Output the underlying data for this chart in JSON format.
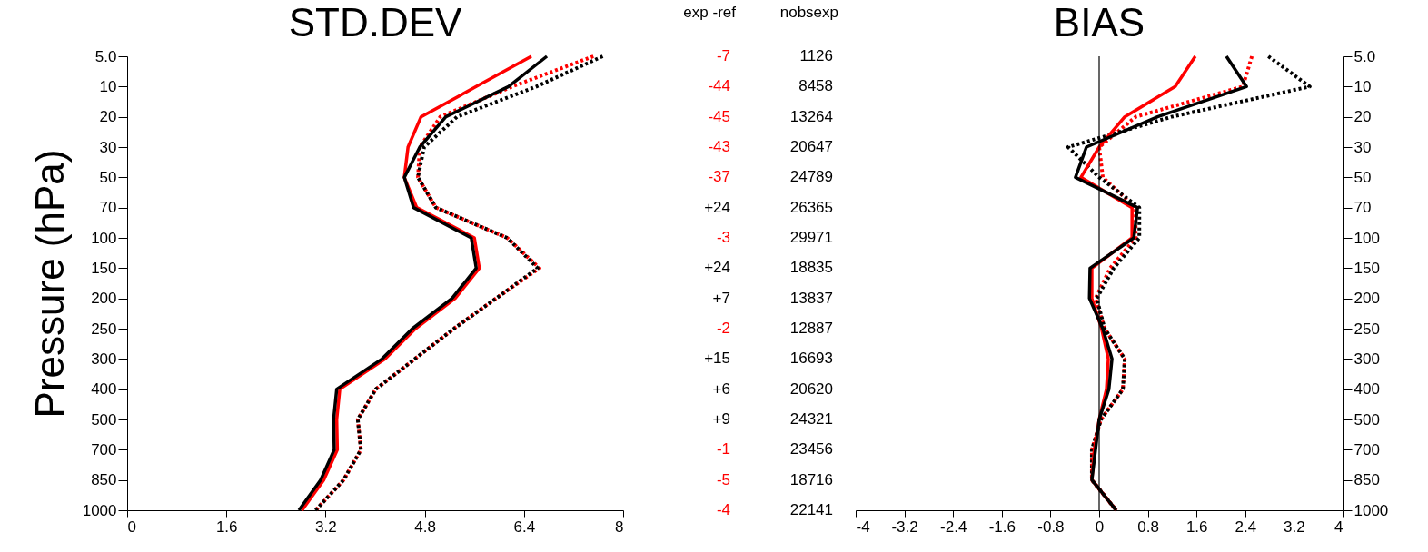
{
  "chart_data": [
    {
      "type": "line",
      "orientation": "horizontal",
      "title": "STD.DEV",
      "ylabel": "Pressure (hPa)",
      "categories": [
        "5.0",
        "10",
        "20",
        "30",
        "50",
        "70",
        "100",
        "150",
        "200",
        "250",
        "300",
        "400",
        "500",
        "700",
        "850",
        "1000"
      ],
      "xlim": [
        0,
        8
      ],
      "xticks": [
        0,
        1.6,
        3.2,
        4.8,
        6.4,
        8
      ],
      "grid": false,
      "series": [
        {
          "color": "#ff0000",
          "line_style": "dotted",
          "values": [
            7.52,
            6.21,
            5.05,
            4.72,
            4.69,
            4.98,
            6.13,
            6.65,
            5.95,
            5.27,
            4.64,
            4.01,
            3.72,
            3.77,
            3.49,
            3.04
          ]
        },
        {
          "color": "#000000",
          "line_style": "dotted",
          "values": [
            7.67,
            6.6,
            5.32,
            4.79,
            4.69,
            4.98,
            6.13,
            6.62,
            5.95,
            5.27,
            4.64,
            4.01,
            3.72,
            3.77,
            3.49,
            3.04
          ]
        },
        {
          "color": "#ff0000",
          "line_style": "solid",
          "values": [
            6.52,
            5.63,
            4.74,
            4.53,
            4.47,
            4.67,
            5.6,
            5.68,
            5.29,
            4.65,
            4.16,
            3.43,
            3.38,
            3.39,
            3.17,
            2.82
          ]
        },
        {
          "color": "#000000",
          "line_style": "solid",
          "values": [
            6.77,
            6.15,
            5.14,
            4.72,
            4.47,
            4.62,
            5.55,
            5.63,
            5.24,
            4.6,
            4.11,
            3.38,
            3.33,
            3.34,
            3.12,
            2.77
          ]
        }
      ]
    },
    {
      "type": "other",
      "annotations": [
        "exp -ref",
        "nobsexp",
        "-7",
        "1126",
        "-44",
        "8458",
        "-45",
        "13264",
        "-43",
        "20647",
        "-37",
        "24789",
        "+24",
        "26365",
        "-3",
        "29971",
        "+24",
        "18835",
        "+7",
        "13837",
        "-2",
        "12887",
        "+15",
        "16693",
        "+6",
        "20620",
        "+9",
        "24321",
        "-1",
        "23456",
        "-5",
        "18716",
        "-4",
        "22141"
      ],
      "colors": [
        "#000000",
        "#000000",
        "#ff0000",
        "#000000",
        "#ff0000",
        "#000000",
        "#ff0000",
        "#000000",
        "#ff0000",
        "#000000",
        "#ff0000",
        "#000000",
        "#000000",
        "#000000",
        "#ff0000",
        "#000000",
        "#000000",
        "#000000",
        "#000000",
        "#000000",
        "#ff0000",
        "#000000",
        "#000000",
        "#000000",
        "#000000",
        "#000000",
        "#000000",
        "#000000",
        "#ff0000",
        "#000000",
        "#ff0000",
        "#000000",
        "#ff0000",
        "#000000"
      ]
    },
    {
      "type": "line",
      "orientation": "horizontal",
      "title": "BIAS",
      "categories": [
        "5.0",
        "10",
        "20",
        "30",
        "50",
        "70",
        "100",
        "150",
        "200",
        "250",
        "300",
        "400",
        "500",
        "700",
        "850",
        "1000"
      ],
      "xlim": [
        -4,
        4
      ],
      "xticks": [
        -4,
        -3.2,
        -2.4,
        -1.6,
        -0.8,
        0,
        0.8,
        1.6,
        2.4,
        3.2,
        4
      ],
      "grid": false,
      "ref_lines": [
        {
          "axis": "x",
          "value": 0,
          "color": "#000000"
        }
      ],
      "series": [
        {
          "color": "#ff0000",
          "line_style": "dotted",
          "values": [
            2.51,
            2.36,
            0.6,
            0.0,
            0.06,
            0.6,
            0.6,
            0.18,
            -0.06,
            0.09,
            0.42,
            0.39,
            0.03,
            -0.12,
            -0.12,
            0.28
          ]
        },
        {
          "color": "#000000",
          "line_style": "dotted",
          "values": [
            2.78,
            3.46,
            1.19,
            -0.51,
            0.0,
            0.66,
            0.66,
            0.24,
            -0.04,
            0.09,
            0.42,
            0.39,
            0.03,
            -0.12,
            -0.12,
            0.28
          ]
        },
        {
          "color": "#ff0000",
          "line_style": "solid",
          "values": [
            1.58,
            1.25,
            0.42,
            0.0,
            -0.3,
            0.54,
            0.54,
            -0.12,
            -0.12,
            0.04,
            0.15,
            0.12,
            0.0,
            -0.08,
            -0.12,
            0.28
          ]
        },
        {
          "color": "#000000",
          "line_style": "solid",
          "values": [
            2.09,
            2.42,
            0.96,
            -0.21,
            -0.39,
            0.63,
            0.57,
            -0.15,
            -0.16,
            0.06,
            0.21,
            0.16,
            0.0,
            -0.06,
            -0.12,
            0.28
          ]
        }
      ]
    }
  ]
}
